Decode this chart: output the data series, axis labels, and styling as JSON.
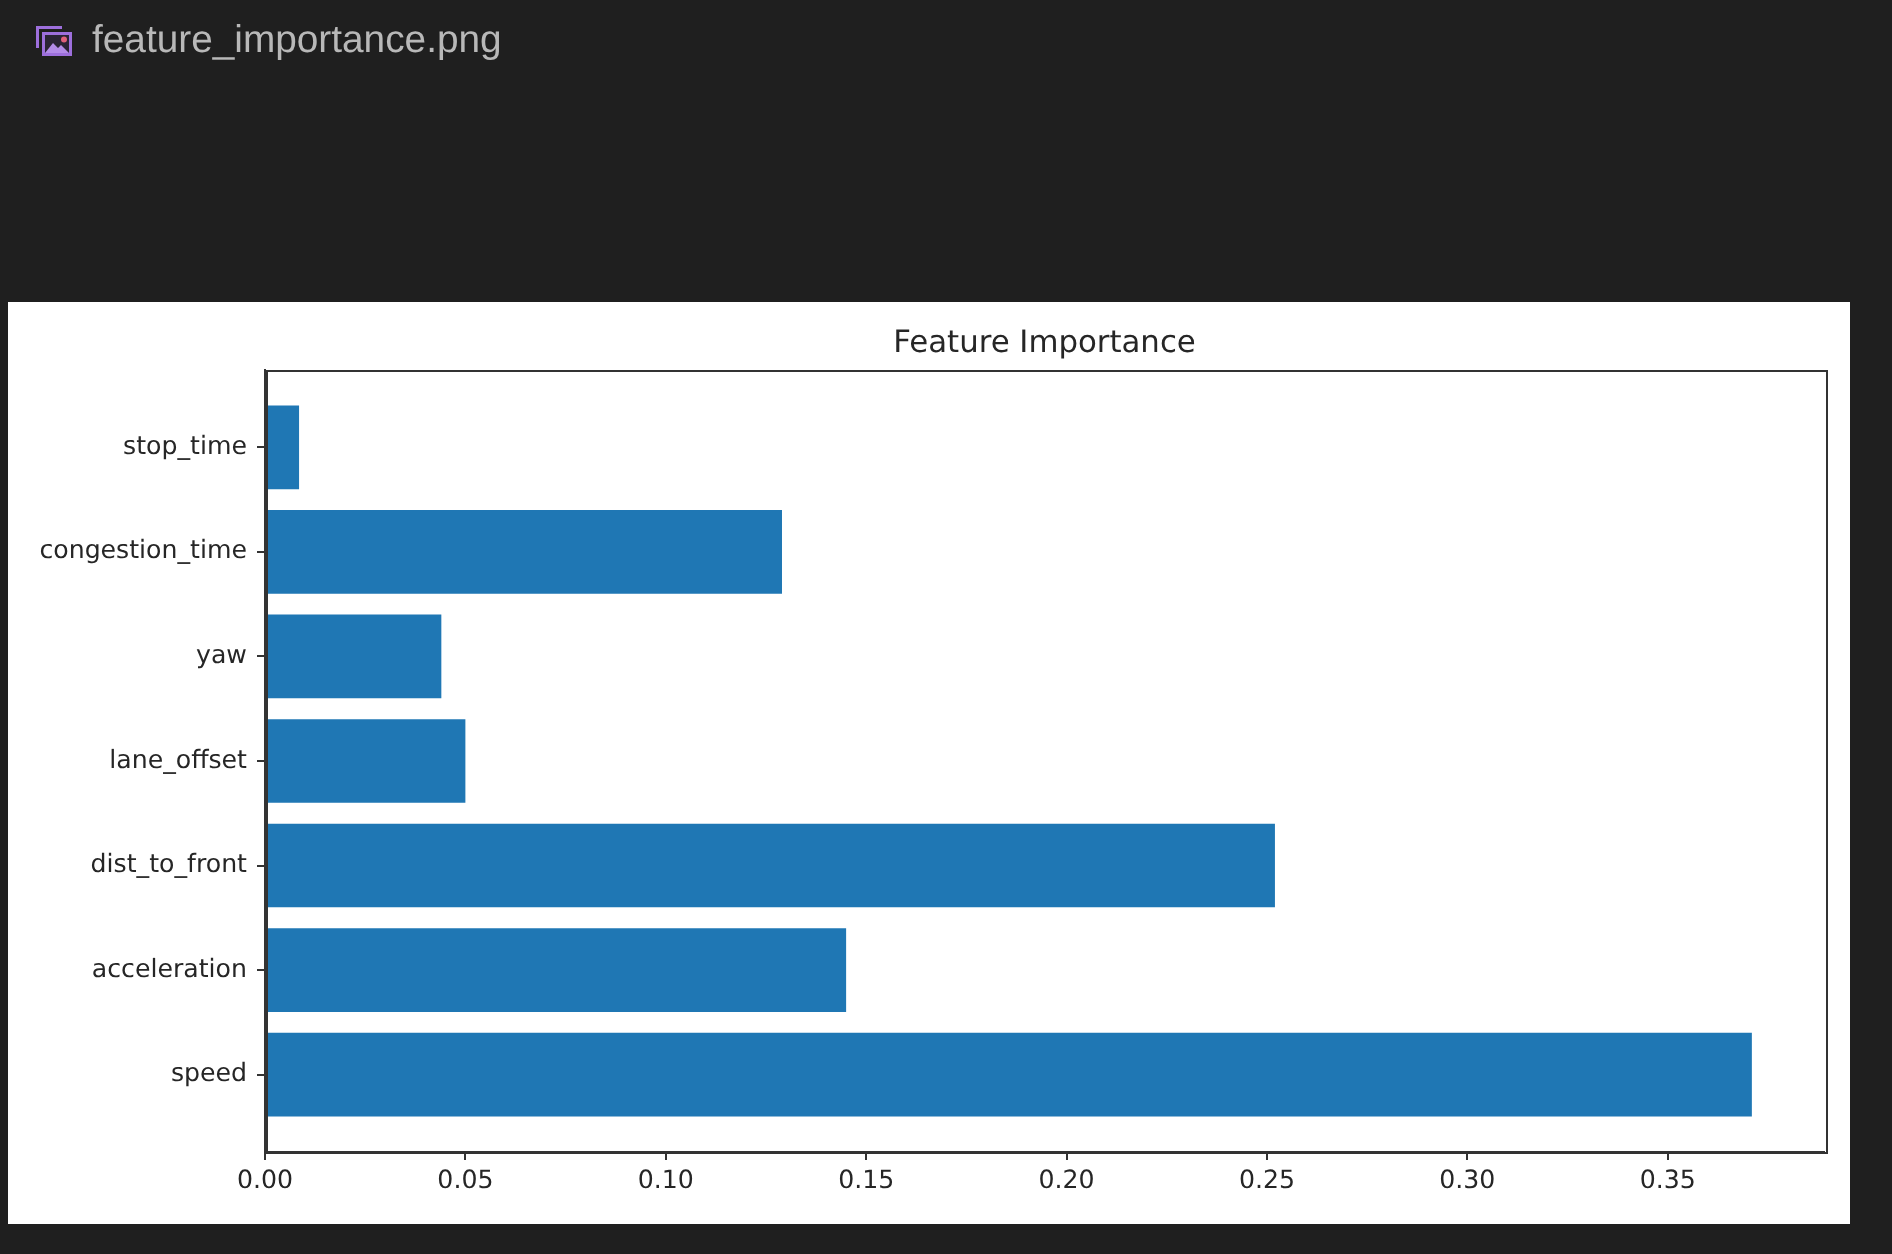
{
  "chart_data": {
    "type": "bar",
    "orientation": "horizontal",
    "title": "Feature Importance",
    "categories": [
      "stop_time",
      "congestion_time",
      "yaw",
      "lane_offset",
      "dist_to_front",
      "acceleration",
      "speed"
    ],
    "values": [
      0.0085,
      0.129,
      0.044,
      0.05,
      0.252,
      0.145,
      0.371
    ],
    "color": "#1f77b4",
    "xlim": [
      0,
      0.389
    ],
    "xticks": [
      {
        "value": 0,
        "label": "0.00"
      },
      0.05,
      {
        "value": 0.1,
        "label": "0.10"
      },
      0.15,
      {
        "value": 0.2,
        "label": "0.20"
      },
      0.25,
      {
        "value": 0.3,
        "label": "0.30"
      },
      0.35
    ],
    "grid": false,
    "legend": false,
    "annotations": [
      "feature_importance.png"
    ]
  }
}
